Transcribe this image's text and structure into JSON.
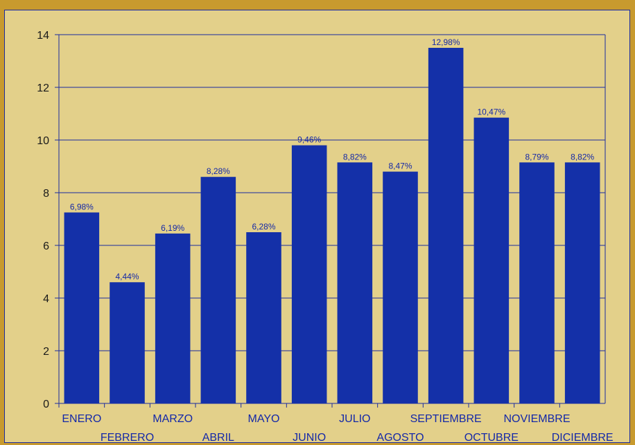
{
  "colors": {
    "bar": "#1430a8",
    "axis": "#1a2aa0",
    "plot_bg": "#e3d08a",
    "header": "#c89a2e"
  },
  "chart_data": {
    "type": "bar",
    "categories": [
      "ENERO",
      "FEBRERO",
      "MARZO",
      "ABRIL",
      "MAYO",
      "JUNIO",
      "JULIO",
      "AGOSTO",
      "SEPTIEMBRE",
      "OCTUBRE",
      "NOVIEMBRE",
      "DICIEMBRE"
    ],
    "values": [
      7.25,
      4.6,
      6.45,
      8.6,
      6.5,
      9.8,
      9.15,
      8.8,
      13.5,
      10.85,
      9.15,
      9.15
    ],
    "data_labels": [
      "6,98%",
      "4,44%",
      "6,19%",
      "8,28%",
      "6,28%",
      "9,46%",
      "8,82%",
      "8,47%",
      "12,98%",
      "10,47%",
      "8,79%",
      "8,82%"
    ],
    "title": "",
    "xlabel": "",
    "ylabel": "",
    "ylim": [
      0,
      14
    ],
    "yticks": [
      0,
      2,
      4,
      6,
      8,
      10,
      12,
      14
    ],
    "grid": true,
    "legend": "none"
  }
}
